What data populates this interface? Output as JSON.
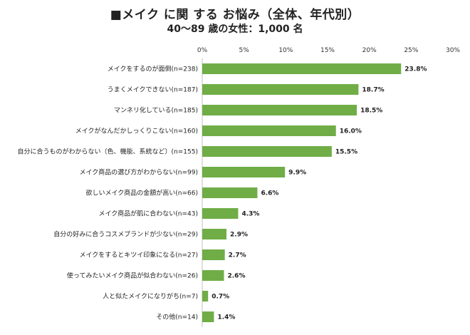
{
  "title": "■メイク に関 する お悩み（全体、年代別）",
  "subtitle": "40〜89 歳の女性：1,000 名",
  "chart_data": {
    "type": "bar",
    "orientation": "horizontal",
    "title": "■メイク に関 する お悩み（全体、年代別）",
    "subtitle": "40〜89 歳の女性：1,000 名",
    "xlim": [
      0,
      30
    ],
    "x_ticks": [
      "0%",
      "5%",
      "10%",
      "15%",
      "20%",
      "25%",
      "30%"
    ],
    "x_tick_values": [
      0,
      5,
      10,
      15,
      20,
      25,
      30
    ],
    "grid": false,
    "bar_color": "#70ad47",
    "categories": [
      "メイクをするのが面倒(n=238)",
      "うまくメイクできない(n=187)",
      "マンネリ化している(n=185)",
      "メイクがなんだかしっくりこない(n=160)",
      "自分に合うものがわからない（色、機能、系統など）(n=155)",
      "メイク商品の選び方がわからない(n=99)",
      "欲しいメイク商品の金額が高い(n=66)",
      "メイク商品が肌に合わない(n=43)",
      "自分の好みに合うコスメブランドが少ない(n=29)",
      "メイクをするとキツイ印象になる(n=27)",
      "使ってみたいメイク商品が似合わない(n=26)",
      "人と似たメイクになりがち(n=7)",
      "その他(n=14)"
    ],
    "values": [
      23.8,
      18.7,
      18.5,
      16.0,
      15.5,
      9.9,
      6.6,
      4.3,
      2.9,
      2.7,
      2.6,
      0.7,
      1.4
    ],
    "data_labels": [
      "23.8%",
      "18.7%",
      "18.5%",
      "16.0%",
      "15.5%",
      "9.9%",
      "6.6%",
      "4.3%",
      "2.9%",
      "2.7%",
      "2.6%",
      "0.7%",
      "1.4%"
    ]
  }
}
